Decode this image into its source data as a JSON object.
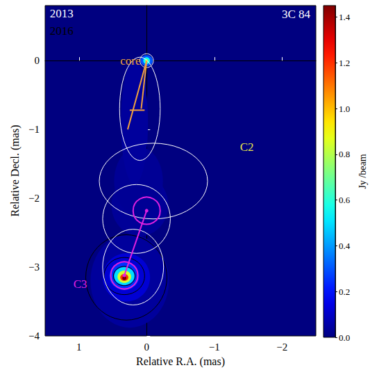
{
  "chart_data": {
    "type": "image",
    "title": "3C 84",
    "x_label": "Relative R.A. (mas)",
    "y_label": "Relative Decl. (mas)",
    "xlim": [
      1.5,
      -2.5
    ],
    "ylim": [
      -4,
      0.8
    ],
    "xticks": [
      1,
      0,
      {
        "value": -1,
        "label": "−1"
      },
      {
        "value": -2,
        "label": "−2"
      }
    ],
    "yticks": [
      0,
      {
        "value": -1,
        "label": "−1"
      },
      {
        "value": -2,
        "label": "−2"
      },
      {
        "value": -3,
        "label": "−3"
      },
      {
        "value": -4,
        "label": "−4"
      }
    ],
    "grid": false,
    "colorbar": {
      "label": "Jy /beam",
      "lim": [
        0,
        1.45
      ],
      "ticks": [
        {
          "value": 0,
          "label": "0.0"
        },
        {
          "value": 0.2,
          "label": "0.2"
        },
        {
          "value": 0.4,
          "label": "0.4"
        },
        {
          "value": 0.6,
          "label": "0.6"
        },
        {
          "value": 0.8,
          "label": "0.8"
        },
        {
          "value": 1.0,
          "label": "1.0"
        },
        {
          "value": 1.2,
          "label": "1.2"
        },
        {
          "value": 1.4,
          "label": "1.4"
        }
      ]
    },
    "emission_2013": [
      [
        0.25,
        -3.2,
        0.58,
        0.68,
        0.04
      ],
      [
        0.1,
        -2.1,
        0.42,
        0.45,
        0.035
      ],
      [
        0.12,
        -1.75,
        0.36,
        0.5,
        0.03
      ],
      [
        0.18,
        -0.9,
        0.2,
        0.9,
        0.04
      ],
      [
        0.3,
        -3.15,
        0.35,
        0.35,
        0.12
      ],
      [
        0.33,
        -3.13,
        0.22,
        0.2,
        0.25
      ],
      [
        0.33,
        -3.13,
        0.15,
        0.13,
        0.5
      ],
      [
        0.33,
        -3.14,
        0.1,
        0.09,
        0.85
      ],
      [
        0.33,
        -3.15,
        0.06,
        0.05,
        1.2
      ],
      [
        0.33,
        -3.16,
        0.03,
        0.03,
        1.45
      ],
      [
        0.0,
        0.0,
        0.09,
        0.08,
        0.3
      ],
      [
        0.0,
        0.0,
        0.05,
        0.05,
        0.55
      ],
      [
        0.0,
        0.0,
        0.025,
        0.025,
        0.75
      ]
    ],
    "contours_2013": {
      "color": "#000000",
      "ellipses": [
        [
          0.3,
          -3.15,
          0.6,
          0.62
        ],
        [
          0.33,
          -3.13,
          0.3,
          0.27
        ],
        [
          0.33,
          -3.13,
          0.16,
          0.14
        ]
      ]
    },
    "contours_2016": {
      "color": "#ffffff",
      "ellipses": [
        [
          0.0,
          0.0,
          0.1,
          0.1
        ],
        [
          0.1,
          -0.7,
          0.3,
          0.75
        ],
        [
          -0.1,
          -1.75,
          0.8,
          0.55
        ],
        [
          0.15,
          -2.3,
          0.5,
          0.5
        ],
        [
          0.2,
          -3.0,
          0.45,
          0.55
        ]
      ]
    },
    "core_track": {
      "color": "#f0a040",
      "segments": [
        [
          [
            0.0,
            0.0
          ],
          [
            0.28,
            -1.0
          ]
        ],
        [
          [
            0.0,
            0.0
          ],
          [
            0.08,
            -0.7
          ]
        ],
        [
          [
            0.25,
            -0.72
          ],
          [
            0.03,
            -0.72
          ]
        ]
      ]
    },
    "c3_track": {
      "color": "#e020e0",
      "circles": [
        [
          0.0,
          -2.18,
          0.2
        ],
        [
          0.33,
          -3.12,
          0.2
        ]
      ]
    },
    "annotations": [
      {
        "text": "2013",
        "x": 1.43,
        "y": 0.68,
        "color": "#ffffff",
        "align": "left"
      },
      {
        "text": "2016",
        "x": 1.43,
        "y": 0.43,
        "color": "#000000",
        "align": "left"
      },
      {
        "text": "core",
        "x": 0.24,
        "y": 0.0,
        "color": "#f0a040",
        "align": "center"
      },
      {
        "text": "C2",
        "x": -1.48,
        "y": -1.26,
        "color": "#e6e64a",
        "align": "center"
      },
      {
        "text": "C3",
        "x": 0.98,
        "y": -3.25,
        "color": "#e020e0",
        "align": "center"
      }
    ]
  }
}
